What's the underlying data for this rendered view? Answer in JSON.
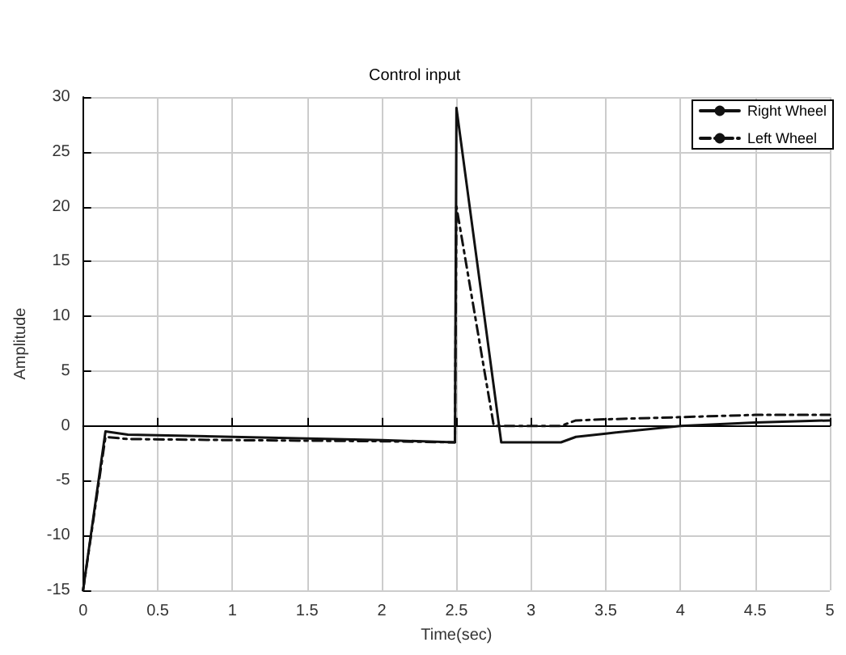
{
  "chart_data": {
    "type": "line",
    "xlabel": "Time(sec)",
    "ylabel": "Amplitude",
    "annotations": [
      "Control input"
    ],
    "xlim": [
      0,
      5
    ],
    "xticks": [
      0,
      0.5,
      1,
      1.5,
      2,
      2.5,
      3,
      3.5,
      4,
      4.5,
      5
    ],
    "ylim": [
      -15,
      30
    ],
    "yticks": [
      -15,
      -10,
      -5,
      0,
      5,
      10,
      15,
      20,
      25,
      30
    ],
    "grid": true,
    "legend": "top right",
    "marker": "none",
    "series": [
      {
        "name": "Right Wheel",
        "color": "#111111",
        "line_style": "solid",
        "x": [
          0,
          0.15,
          0.3,
          1,
          2,
          2.49,
          2.5,
          2.8,
          3.2,
          3.3,
          3.5,
          4,
          4.5,
          5
        ],
        "values": [
          -15,
          -0.5,
          -0.8,
          -1,
          -1.3,
          -1.5,
          29,
          -1.5,
          -1.5,
          -1,
          -0.7,
          0,
          0.3,
          0.5
        ]
      },
      {
        "name": "Left Wheel",
        "color": "#111111",
        "line_style": "dashed",
        "x": [
          0,
          0.15,
          0.3,
          1,
          2,
          2.49,
          2.5,
          2.75,
          3.2,
          3.3,
          3.5,
          4,
          4.5,
          5
        ],
        "values": [
          -15,
          -1,
          -1.2,
          -1.3,
          -1.4,
          -1.5,
          20,
          0,
          0,
          0.5,
          0.6,
          0.8,
          1,
          1
        ]
      }
    ]
  }
}
